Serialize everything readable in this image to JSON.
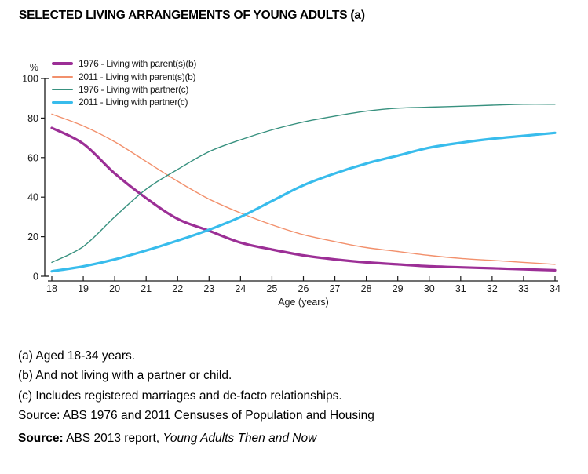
{
  "page": {
    "title": "SELECTED LIVING ARRANGEMENTS OF YOUNG ADULTS (a)"
  },
  "chart_data": {
    "type": "line",
    "title": "SELECTED LIVING ARRANGEMENTS OF YOUNG ADULTS (a)",
    "xlabel": "Age (years)",
    "ylabel": "%",
    "x": [
      18,
      19,
      20,
      21,
      22,
      23,
      24,
      25,
      26,
      27,
      28,
      29,
      30,
      31,
      32,
      33,
      34
    ],
    "xlim": [
      18,
      34
    ],
    "ylim": [
      0,
      100
    ],
    "yticks": [
      0,
      20,
      40,
      60,
      80,
      100
    ],
    "grid": false,
    "legend_position": "top-left-inside",
    "series": [
      {
        "name": "1976 - Living with parent(s)(b)",
        "color": "#9C2F96",
        "thick": true,
        "values": [
          75,
          67,
          52,
          39.5,
          29,
          23,
          17,
          13.5,
          10.5,
          8.5,
          7,
          6,
          5,
          4.5,
          4,
          3.5,
          3
        ]
      },
      {
        "name": "2011 - Living with parent(s)(b)",
        "color": "#F2906C",
        "thick": false,
        "values": [
          82,
          76,
          68,
          58,
          48,
          39,
          32,
          26,
          21,
          17.5,
          14.5,
          12.5,
          10.5,
          9,
          8,
          7,
          6
        ]
      },
      {
        "name": "1976 - Living with partner(c)",
        "color": "#38917F",
        "thick": false,
        "values": [
          7,
          15,
          30,
          44,
          54,
          63,
          69,
          74,
          78,
          81,
          83.5,
          85,
          85.5,
          86,
          86.5,
          87,
          87
        ]
      },
      {
        "name": "2011 - Living with partner(c)",
        "color": "#38BCEC",
        "thick": true,
        "values": [
          2.5,
          5,
          8.5,
          13,
          18,
          23.5,
          30,
          38,
          46,
          52,
          57,
          61,
          65,
          67.5,
          69.5,
          71,
          72.5
        ]
      }
    ]
  },
  "footnotes": {
    "a": "(a) Aged 18-34 years.",
    "b": "(b) And not living with a partner or child.",
    "c": "(c) Includes registered marriages and de-facto relationships.",
    "census_source": "Source: ABS 1976 and 2011 Censuses of Population and Housing"
  },
  "source": {
    "label": "Source:",
    "text": " ABS 2013 report, ",
    "italic": "Young Adults Then and Now"
  }
}
